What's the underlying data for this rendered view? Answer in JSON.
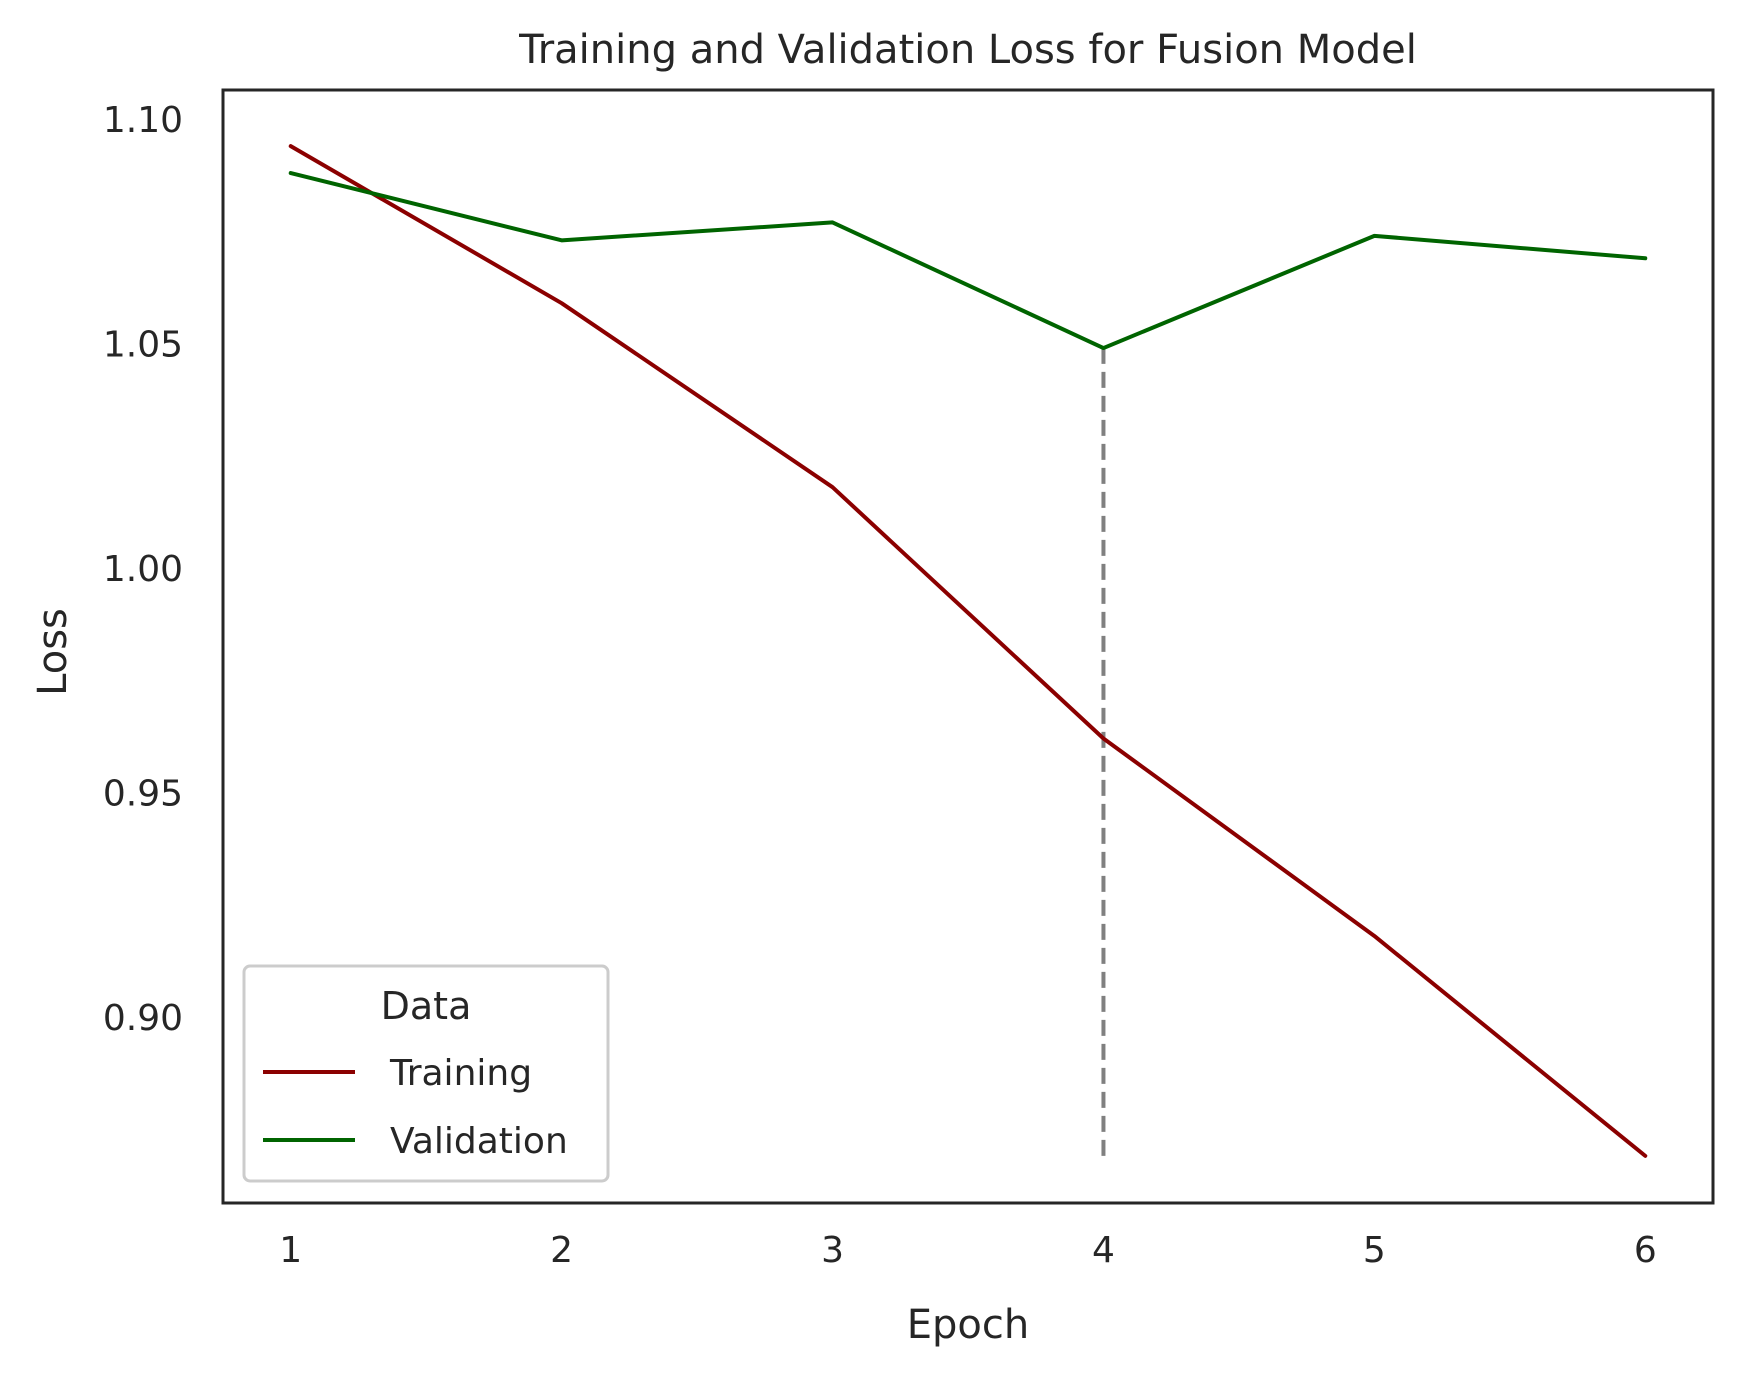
{
  "chart_data": {
    "type": "line",
    "title": "Training and Validation Loss for Fusion Model",
    "xlabel": "Epoch",
    "ylabel": "Loss",
    "x": [
      1,
      2,
      3,
      4,
      5,
      6
    ],
    "xticks": [
      1,
      2,
      3,
      4,
      5,
      6
    ],
    "yticks": [
      0.9,
      0.95,
      1.0,
      1.05,
      1.1
    ],
    "ytick_labels": [
      "0.90",
      "0.95",
      "1.00",
      "1.05",
      "1.10"
    ],
    "xlim": [
      0.75,
      6.25
    ],
    "ylim": [
      0.8585,
      1.1065
    ],
    "grid": false,
    "legend": {
      "title": "Data",
      "position": "lower-left"
    },
    "series": [
      {
        "name": "Training",
        "color": "#8b0000",
        "values": [
          1.094,
          1.059,
          1.018,
          0.962,
          0.918,
          0.869
        ]
      },
      {
        "name": "Validation",
        "color": "#006400",
        "values": [
          1.088,
          1.073,
          1.077,
          1.049,
          1.074,
          1.069
        ]
      }
    ],
    "annotations": [
      {
        "type": "vertical-dashed-line",
        "x": 4,
        "y_from": 0.869,
        "y_to": 1.049,
        "color": "#808080"
      }
    ]
  }
}
